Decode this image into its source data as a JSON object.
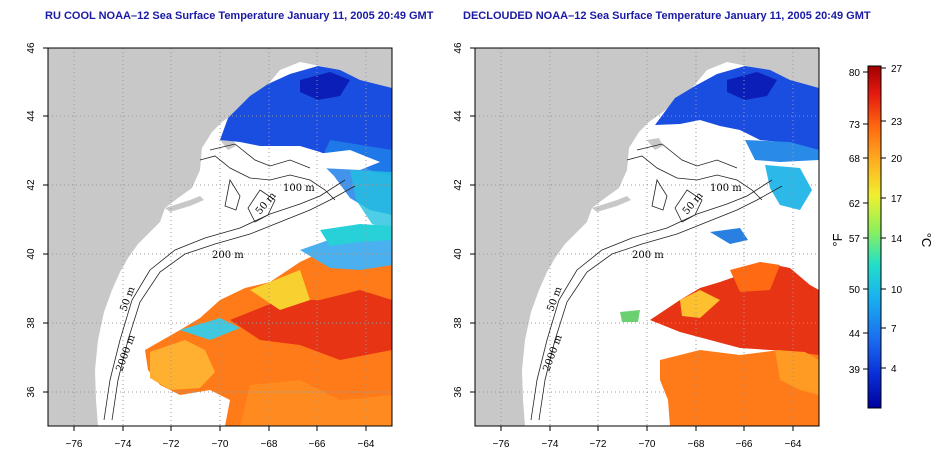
{
  "panels": [
    {
      "id": "left",
      "title": "RU COOL NOAA–12 Sea Surface Temperature January 11, 2005 20:49 GMT",
      "clouds": "masked-as-white"
    },
    {
      "id": "right",
      "title": "DECLOUDED NOAA–12 Sea Surface Temperature January 11, 2005 20:49 GMT",
      "clouds": "removed"
    }
  ],
  "map": {
    "lon_range": [
      -77,
      -63
    ],
    "lat_range": [
      35,
      46
    ],
    "lon_ticks": [
      "−76",
      "−74",
      "−72",
      "−70",
      "−68",
      "−66",
      "−64"
    ],
    "lat_ticks": [
      "36",
      "38",
      "40",
      "42",
      "44",
      "46"
    ],
    "land_color": "#c8c8c8",
    "grid": "dotted",
    "contour_labels": [
      {
        "text": "100 m"
      },
      {
        "text": "50 m"
      },
      {
        "text": "200 m"
      },
      {
        "text": "50 m"
      },
      {
        "text": "2000 m"
      }
    ]
  },
  "colorbar": {
    "fahrenheit_ticks": [
      "80",
      "73",
      "68",
      "62",
      "57",
      "50",
      "44",
      "39"
    ],
    "celsius_ticks": [
      "27",
      "23",
      "20",
      "17",
      "14",
      "10",
      "7",
      "4"
    ],
    "unit_left": "°F",
    "unit_right": "°C",
    "range_c": [
      1,
      27
    ],
    "colors": [
      "#00009e",
      "#0a2fd8",
      "#1a6cf0",
      "#18b0f0",
      "#22e0c8",
      "#8ef05a",
      "#f0f030",
      "#ffb020",
      "#ff6a10",
      "#e41810",
      "#a00000"
    ]
  }
}
